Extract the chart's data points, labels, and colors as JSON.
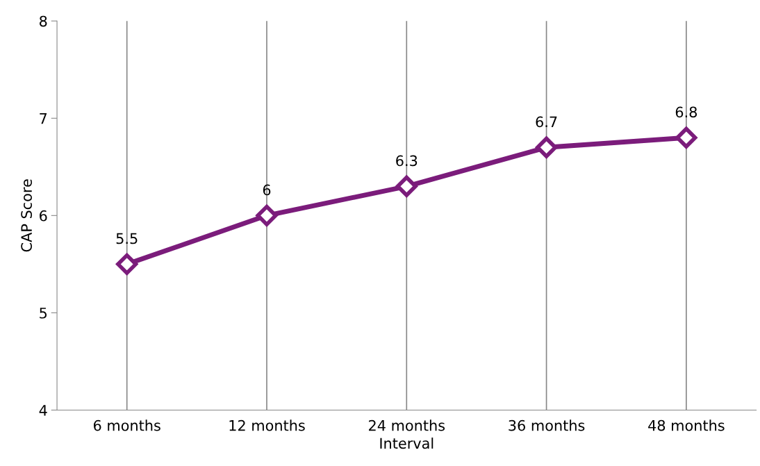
{
  "chart_data": {
    "type": "line",
    "xlabel": "Interval",
    "ylabel": "CAP Score",
    "categories": [
      "6 months",
      "12 months",
      "24 months",
      "36 months",
      "48 months"
    ],
    "series": [
      {
        "color": "#7b1c7b",
        "values": [
          5.5,
          6,
          6.3,
          6.7,
          6.8
        ]
      }
    ],
    "ylim": [
      4,
      8
    ],
    "yticks": [
      4,
      5,
      6,
      7,
      8
    ],
    "grid": "x",
    "marker": "diamond",
    "data_labels": true
  }
}
